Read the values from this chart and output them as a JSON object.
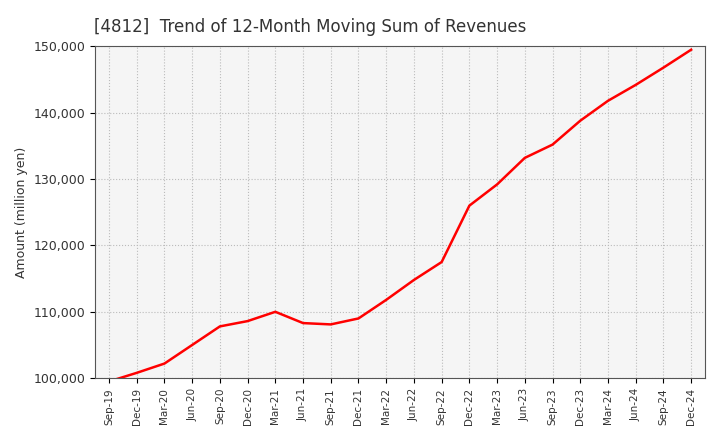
{
  "title": "[4812]  Trend of 12-Month Moving Sum of Revenues",
  "ylabel": "Amount (million yen)",
  "line_color": "#FF0000",
  "line_width": 1.8,
  "background_color": "#FFFFFF",
  "plot_bg_color": "#F5F5F5",
  "grid_color": "#BBBBBB",
  "title_color": "#333333",
  "ylim": [
    100000,
    150000
  ],
  "yticks": [
    100000,
    110000,
    120000,
    130000,
    140000,
    150000
  ],
  "x_labels": [
    "Sep-19",
    "Dec-19",
    "Mar-20",
    "Jun-20",
    "Sep-20",
    "Dec-20",
    "Mar-21",
    "Jun-21",
    "Sep-21",
    "Dec-21",
    "Mar-22",
    "Jun-22",
    "Sep-22",
    "Dec-22",
    "Mar-23",
    "Jun-23",
    "Sep-23",
    "Dec-23",
    "Mar-24",
    "Jun-24",
    "Sep-24",
    "Dec-24"
  ],
  "values": [
    99500,
    100800,
    102200,
    105000,
    107800,
    108600,
    110000,
    108300,
    108100,
    109000,
    111800,
    114800,
    117500,
    126000,
    129200,
    133200,
    135200,
    138800,
    141800,
    144200,
    146800,
    149500
  ]
}
